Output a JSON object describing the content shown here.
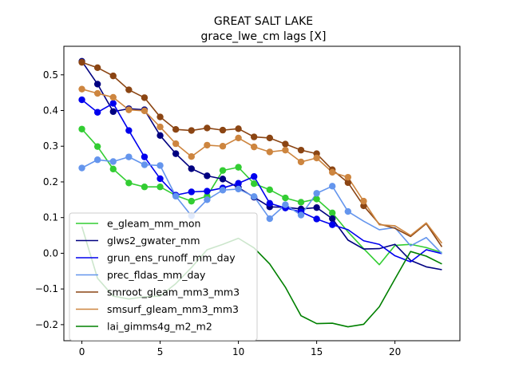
{
  "chart_data": {
    "type": "line",
    "title": "GREAT SALT LAKE",
    "subtitle": "grace_lwe_cm lags [X]",
    "xlabel": "",
    "ylabel": "",
    "xlim": [
      -1.15,
      24.15
    ],
    "ylim": [
      -0.245,
      0.58
    ],
    "xticks": [
      0,
      5,
      10,
      15,
      20
    ],
    "yticks": [
      -0.2,
      -0.1,
      0.0,
      0.1,
      0.2,
      0.3,
      0.4,
      0.5
    ],
    "grid": false,
    "legend_position": "lower-left",
    "x": [
      0,
      1,
      2,
      3,
      4,
      5,
      6,
      7,
      8,
      9,
      10,
      11,
      12,
      13,
      14,
      15,
      16,
      17,
      18,
      19,
      20,
      21,
      22,
      23
    ],
    "series": [
      {
        "name": "e_gleam_mm_mon",
        "color": "#32cd32",
        "values": [
          0.348,
          0.299,
          0.236,
          0.197,
          0.186,
          0.186,
          0.162,
          0.146,
          0.16,
          0.232,
          0.241,
          0.195,
          0.178,
          0.155,
          0.143,
          0.152,
          0.113,
          0.06,
          0.013,
          -0.032,
          0.022,
          0.025,
          0.016,
          0.002
        ],
        "marker_count": 17
      },
      {
        "name": "glws2_gwater_mm",
        "color": "#000080",
        "values": [
          0.538,
          0.474,
          0.397,
          0.405,
          0.402,
          0.33,
          0.279,
          0.237,
          0.217,
          0.208,
          0.184,
          0.157,
          0.13,
          0.129,
          0.124,
          0.128,
          0.097,
          0.037,
          0.012,
          0.013,
          0.025,
          -0.02,
          -0.038,
          -0.046
        ],
        "marker_count": 17
      },
      {
        "name": "grun_ens_runoff_mm_day",
        "color": "#0000ee",
        "values": [
          0.43,
          0.395,
          0.42,
          0.344,
          0.27,
          0.209,
          0.163,
          0.172,
          0.174,
          0.183,
          0.196,
          0.215,
          0.14,
          0.127,
          0.116,
          0.096,
          0.08,
          0.066,
          0.035,
          0.025,
          -0.007,
          -0.024,
          0.01,
          -0.001
        ],
        "marker_count": 17
      },
      {
        "name": "prec_fldas_mm_day",
        "color": "#6495ed",
        "values": [
          0.239,
          0.262,
          0.257,
          0.27,
          0.248,
          0.246,
          0.16,
          0.105,
          0.15,
          0.177,
          0.18,
          0.159,
          0.097,
          0.136,
          0.107,
          0.168,
          0.188,
          0.117,
          0.09,
          0.066,
          0.072,
          0.021,
          0.044,
          -0.001
        ],
        "marker_count": 18
      },
      {
        "name": "smroot_gleam_mm3_mm3",
        "color": "#8b4513",
        "values": [
          0.535,
          0.52,
          0.497,
          0.458,
          0.436,
          0.382,
          0.347,
          0.344,
          0.351,
          0.345,
          0.349,
          0.326,
          0.323,
          0.306,
          0.289,
          0.279,
          0.234,
          0.198,
          0.133,
          0.082,
          0.07,
          0.047,
          0.083,
          0.018
        ],
        "marker_count": 19
      },
      {
        "name": "smsurf_gleam_mm3_mm3",
        "color": "#cd853f",
        "values": [
          0.46,
          0.448,
          0.437,
          0.402,
          0.399,
          0.354,
          0.307,
          0.271,
          0.303,
          0.3,
          0.323,
          0.298,
          0.284,
          0.289,
          0.256,
          0.267,
          0.227,
          0.213,
          0.146,
          0.08,
          0.077,
          0.05,
          0.085,
          0.028
        ],
        "marker_count": 19
      },
      {
        "name": "lai_gimms4g_m2_m2",
        "color": "#008000",
        "values": [
          0.075,
          -0.07,
          -0.12,
          -0.128,
          -0.122,
          -0.12,
          -0.085,
          -0.04,
          0.01,
          0.025,
          0.042,
          0.015,
          -0.03,
          -0.095,
          -0.175,
          -0.197,
          -0.196,
          -0.206,
          -0.199,
          -0.15,
          -0.072,
          0.005,
          -0.008,
          -0.03
        ],
        "marker_count": 0
      }
    ]
  }
}
